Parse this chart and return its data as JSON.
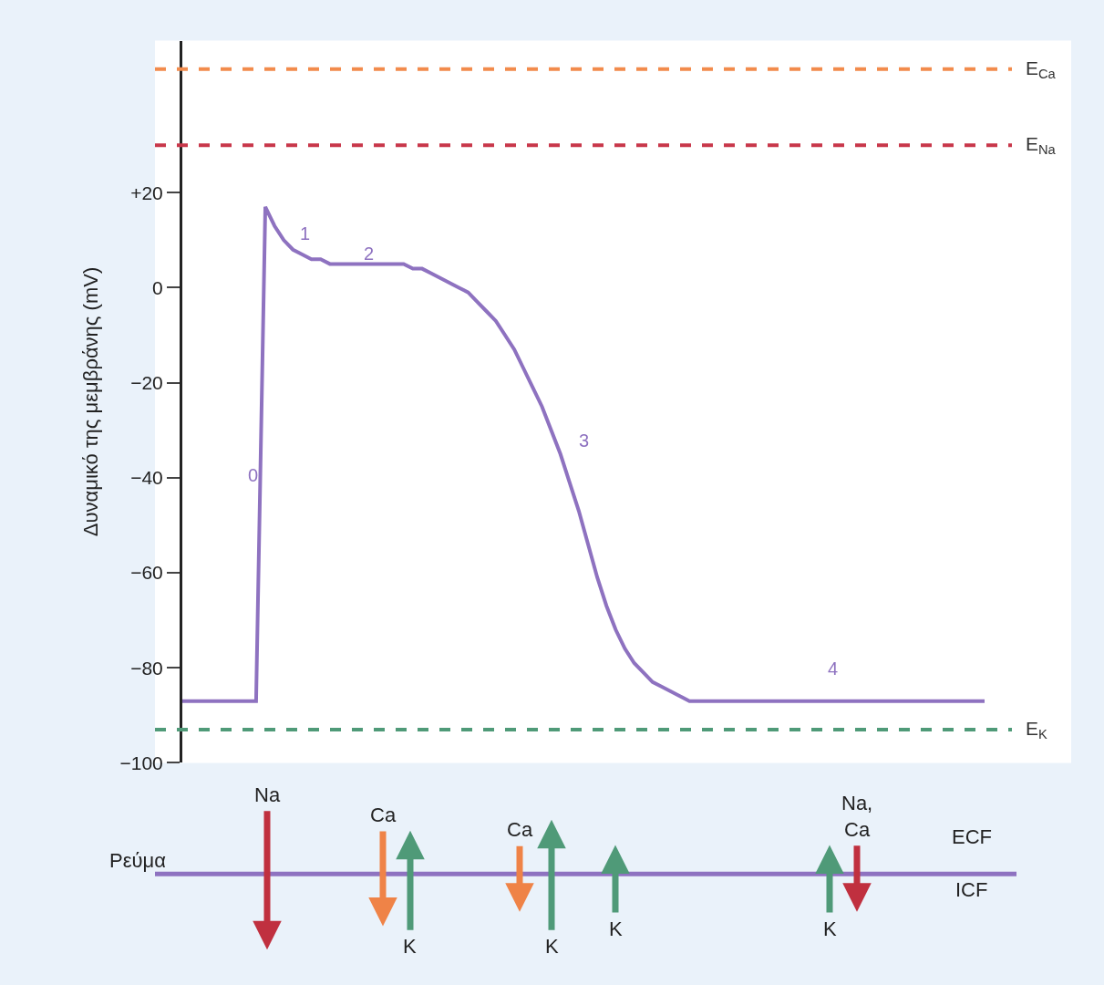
{
  "chart_data": [
    {
      "type": "line",
      "ylabel": "Δυναμικό της μεμβράνης (mV)",
      "categories": [
        null,
        null,
        null,
        null,
        null,
        null,
        null,
        null,
        null,
        null,
        null,
        null,
        null,
        null,
        null,
        null,
        null,
        null,
        null,
        null,
        null,
        null,
        null,
        null,
        null,
        null,
        null,
        null,
        null,
        null,
        null,
        null,
        null,
        null,
        null,
        null,
        null,
        null,
        null,
        null,
        null,
        null,
        null,
        null,
        null,
        null,
        null,
        null,
        null,
        null,
        null,
        null,
        null,
        null,
        null,
        null,
        null,
        null,
        null,
        null,
        null,
        null,
        null,
        null,
        null,
        null,
        null,
        null,
        null,
        null,
        null,
        null,
        null,
        null,
        null,
        null,
        null,
        null,
        null,
        null,
        null,
        null,
        null,
        null,
        null,
        null,
        null,
        null
      ],
      "series": [
        {
          "color": "#8e72c0",
          "values": [
            -87,
            -87,
            -87,
            -87,
            -87,
            -87,
            -87,
            -87,
            -87,
            17,
            13,
            10,
            8,
            7,
            6,
            6,
            5,
            5,
            5,
            5,
            5,
            5,
            5,
            5,
            5,
            4,
            4,
            3,
            2,
            1,
            0,
            -1,
            -3,
            -5,
            -7,
            -10,
            -13,
            -17,
            -21,
            -25,
            -30,
            -35,
            -41,
            -47,
            -54,
            -61,
            -67,
            -72,
            -76,
            -79,
            -81,
            -83,
            -84,
            -85,
            -86,
            -87,
            -87,
            -87,
            -87,
            -87,
            -87,
            -87,
            -87,
            -87,
            -87,
            -87,
            -87,
            -87,
            -87,
            -87,
            -87,
            -87,
            -87,
            -87,
            -87,
            -87,
            -87,
            -87,
            -87,
            -87,
            -87,
            -87,
            -87,
            -87,
            -87,
            -87,
            -87,
            -87
          ]
        }
      ],
      "ylim": [
        -100,
        52
      ],
      "yticks": [
        {
          "value": -100,
          "label": "−100"
        },
        {
          "value": -80,
          "label": "−80"
        },
        {
          "value": -60,
          "label": "−60"
        },
        {
          "value": -40,
          "label": "−40"
        },
        {
          "value": -20,
          "label": "−20"
        },
        0,
        {
          "value": 20,
          "label": "+20"
        }
      ],
      "tick_labels": "y",
      "ref_lines": [
        {
          "axis": "y",
          "value": 46,
          "label": "E$_{Ca}$",
          "color": "#f28b4c",
          "line_style": "dashed"
        },
        {
          "axis": "y",
          "value": 30,
          "label": "E$_{Na}$",
          "color": "#c8374a",
          "line_style": "dashed"
        },
        {
          "axis": "y",
          "value": -93,
          "label": "E$_{K}$",
          "color": "#4f9a78",
          "line_style": "dashed"
        }
      ],
      "annotations": [
        "0",
        "1",
        "2",
        "3",
        "4"
      ]
    },
    {
      "type": "other",
      "annotations": [
        "Ρεύμα",
        "ECF",
        "ICF",
        "Na",
        "Ca",
        "K",
        "Ca",
        "K",
        "K",
        "Na,\nCa",
        "K"
      ]
    }
  ]
}
